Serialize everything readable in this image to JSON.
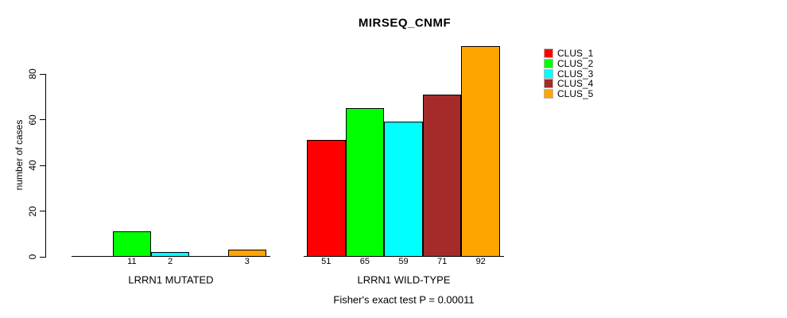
{
  "chart_data": {
    "type": "bar",
    "title": "MIRSEQ_CNMF",
    "ylabel": "number of cases",
    "yticks": [
      0,
      20,
      40,
      60,
      80
    ],
    "ylim": [
      0,
      92
    ],
    "grid": false,
    "legend_position": "right-outside-top",
    "categories": [
      "CLUS_1",
      "CLUS_2",
      "CLUS_3",
      "CLUS_4",
      "CLUS_5"
    ],
    "colors": {
      "CLUS_1": "#ff0000",
      "CLUS_2": "#00ff00",
      "CLUS_3": "#00ffff",
      "CLUS_4": "#a52a2a",
      "CLUS_5": "#ffa500"
    },
    "groups": [
      {
        "label": "LRRN1 MUTATED",
        "values": [
          0,
          11,
          2,
          0,
          3
        ],
        "bar_labels": [
          "",
          "11",
          "2",
          "",
          "3"
        ]
      },
      {
        "label": "LRRN1 WILD-TYPE",
        "values": [
          51,
          65,
          59,
          71,
          92
        ],
        "bar_labels": [
          "51",
          "65",
          "59",
          "71",
          "92"
        ]
      }
    ],
    "annotation": "Fisher's exact test P = 0.00011"
  }
}
